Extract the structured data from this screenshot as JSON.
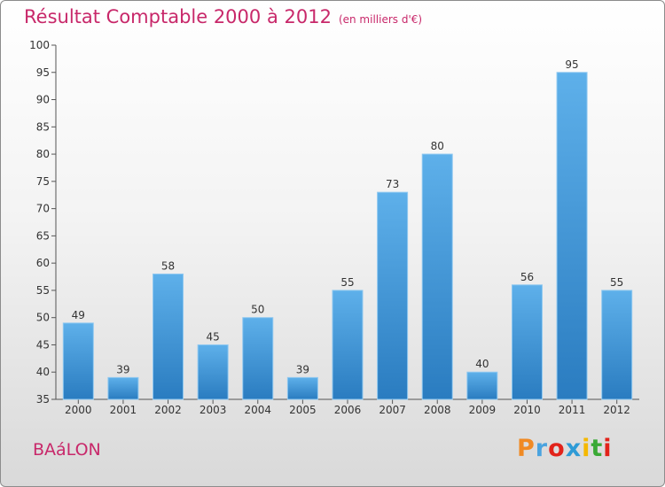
{
  "chart_data": {
    "type": "bar",
    "title": "Résultat Comptable 2000 à 2012",
    "subtitle": "(en milliers d'€)",
    "categories": [
      "2000",
      "2001",
      "2002",
      "2003",
      "2004",
      "2005",
      "2006",
      "2007",
      "2008",
      "2009",
      "2010",
      "2011",
      "2012"
    ],
    "values": [
      49,
      39,
      58,
      45,
      50,
      39,
      55,
      73,
      80,
      40,
      56,
      95,
      55
    ],
    "ylim": [
      35,
      100
    ],
    "yticks": [
      35,
      40,
      45,
      50,
      55,
      60,
      65,
      70,
      75,
      80,
      85,
      90,
      95,
      100
    ],
    "xlabel": "",
    "ylabel": "",
    "grid": false,
    "bar_color_top": "#5eb0ea",
    "bar_color_bottom": "#2a7cc0"
  },
  "commune": "BAáLON",
  "brand": {
    "letters": [
      "P",
      "r",
      "o",
      "x",
      "i",
      "t",
      "i"
    ],
    "colors": [
      "#f08a24",
      "#4aa3df",
      "#e2231a",
      "#2e9bd6",
      "#f5b800",
      "#3aa935",
      "#e2231a"
    ]
  },
  "colors": {
    "title": "#c8286a",
    "axis": "#555555"
  }
}
